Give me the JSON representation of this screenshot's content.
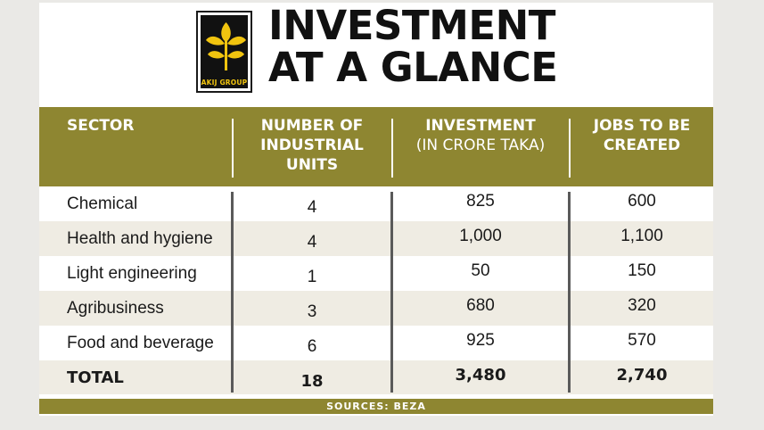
{
  "logo": {
    "brand": "AKIJ GROUP"
  },
  "title": {
    "line1": "INVESTMENT",
    "line2": "AT A GLANCE"
  },
  "table": {
    "headers": {
      "sector": "SECTOR",
      "units": [
        "NUMBER OF",
        "INDUSTRIAL",
        "UNITS"
      ],
      "investment": "INVESTMENT",
      "investment_sub": "(IN CRORE TAKA)",
      "jobs": [
        "JOBS TO BE",
        "CREATED"
      ]
    },
    "rows": [
      {
        "sector": "Chemical",
        "units": "4",
        "investment": "825",
        "jobs": "600"
      },
      {
        "sector": "Health and hygiene",
        "units": "4",
        "investment": "1,000",
        "jobs": "1,100"
      },
      {
        "sector": "Light engineering",
        "units": "1",
        "investment": "50",
        "jobs": "150"
      },
      {
        "sector": "Agribusiness",
        "units": "3",
        "investment": "680",
        "jobs": "320"
      },
      {
        "sector": "Food and beverage",
        "units": "6",
        "investment": "925",
        "jobs": "570"
      }
    ],
    "total": {
      "label": "TOTAL",
      "units": "18",
      "investment": "3,480",
      "jobs": "2,740"
    }
  },
  "footer": {
    "source": "SOURCES: BEZA"
  },
  "colors": {
    "header_bg": "#8e8631",
    "alt_row": "#efece3",
    "logo_gold": "#f1c40f"
  }
}
